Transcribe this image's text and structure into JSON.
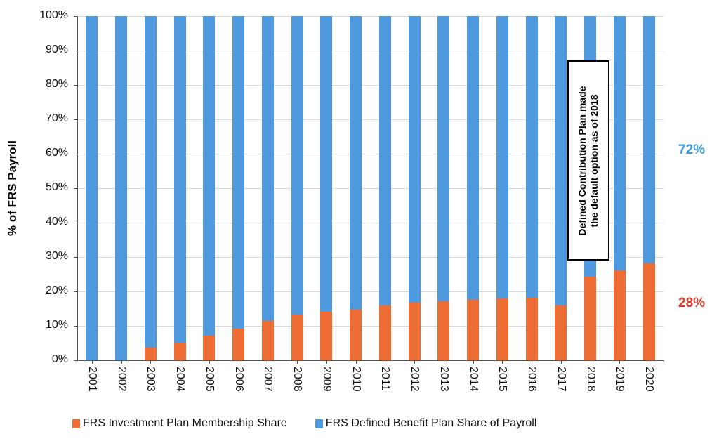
{
  "chart_data": {
    "type": "bar",
    "stacked": true,
    "title": "",
    "xlabel": "",
    "ylabel": "% of FRS Payroll",
    "ylim": [
      0,
      100
    ],
    "yticks": [
      "0%",
      "10%",
      "20%",
      "30%",
      "40%",
      "50%",
      "60%",
      "70%",
      "80%",
      "90%",
      "100%"
    ],
    "grid": true,
    "legend_position": "bottom",
    "categories": [
      "2001",
      "2002",
      "2003",
      "2004",
      "2005",
      "2006",
      "2007",
      "2008",
      "2009",
      "2010",
      "2011",
      "2012",
      "2013",
      "2014",
      "2015",
      "2016",
      "2017",
      "2018",
      "2019",
      "2020"
    ],
    "series": [
      {
        "name": "FRS Investment Plan Membership Share",
        "color": "#ed6d35",
        "values": [
          0,
          0,
          3.7,
          5.1,
          7.1,
          9.2,
          11.4,
          13.3,
          14.0,
          14.7,
          15.9,
          16.8,
          17.2,
          17.6,
          17.9,
          18.2,
          16.0,
          24.2,
          26.2,
          28.2
        ]
      },
      {
        "name": "FRS Defined Benefit Plan Share of Payroll",
        "color": "#4f9ade",
        "values": [
          100,
          100,
          96.3,
          94.9,
          92.9,
          90.8,
          88.6,
          86.7,
          86.0,
          85.3,
          84.1,
          83.2,
          82.8,
          82.4,
          82.1,
          81.8,
          84.0,
          75.8,
          73.8,
          71.8
        ]
      }
    ],
    "annotations": [
      {
        "text": "Defined Contribution Plan made the default option as of 2018",
        "boxed": true
      },
      {
        "text": "72%",
        "color": "#3b9de3"
      },
      {
        "text": "28%",
        "color": "#e8362a"
      }
    ]
  },
  "labels": {
    "ylabel": "% of FRS Payroll",
    "annotation_line1": "Defined Contribution Plan made",
    "annotation_line2": "the default option as of 2018",
    "right_top": "72%",
    "right_bottom": "28%",
    "legend_1": "FRS Investment Plan Membership Share",
    "legend_2": "FRS Defined Benefit Plan Share of Payroll"
  }
}
